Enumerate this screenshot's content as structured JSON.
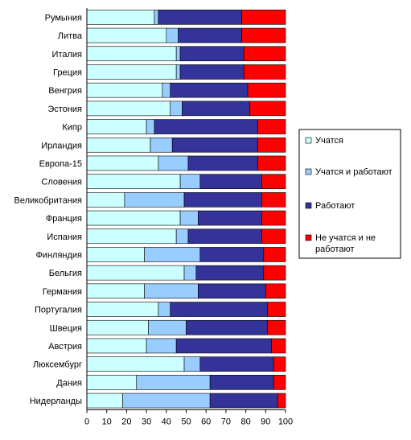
{
  "chart_data": {
    "type": "bar",
    "orientation": "horizontal",
    "stacked": true,
    "title": "",
    "xlabel": "",
    "ylabel": "",
    "xlim": [
      0,
      100
    ],
    "xticks": [
      0,
      10,
      20,
      30,
      40,
      50,
      60,
      70,
      80,
      90,
      100
    ],
    "grid": false,
    "legend_position": "right",
    "categories": [
      "Румыния",
      "Литва",
      "Италия",
      "Греция",
      "Венгрия",
      "Эстония",
      "Кипр",
      "Ирландия",
      "Европа-15",
      "Словения",
      "Великобритания",
      "Франция",
      "Испания",
      "Финляндия",
      "Бельгия",
      "Германия",
      "Португалия",
      "Швеция",
      "Австрия",
      "Люксембург",
      "Дания",
      "Нидерланды"
    ],
    "series": [
      {
        "name": "Учатся",
        "color": "#ccffff",
        "values": [
          34,
          40,
          45,
          45,
          38,
          42,
          30,
          32,
          36,
          47,
          19,
          47,
          45,
          29,
          49,
          29,
          36,
          31,
          30,
          49,
          25,
          18
        ]
      },
      {
        "name": "Учатся и работают",
        "color": "#99ccff",
        "values": [
          2,
          6,
          2,
          2,
          4,
          6,
          4,
          11,
          15,
          10,
          30,
          9,
          6,
          28,
          6,
          27,
          6,
          19,
          15,
          8,
          37,
          44
        ]
      },
      {
        "name": "Работают",
        "color": "#333399",
        "values": [
          42,
          32,
          32,
          32,
          39,
          34,
          52,
          43,
          35,
          31,
          39,
          32,
          37,
          32,
          34,
          34,
          49,
          41,
          48,
          37,
          32,
          34
        ]
      },
      {
        "name": "Не учатся и не работают",
        "color": "#ff0000",
        "values": [
          22,
          22,
          21,
          21,
          19,
          18,
          14,
          14,
          14,
          12,
          12,
          12,
          12,
          11,
          11,
          10,
          9,
          9,
          7,
          6,
          6,
          4
        ]
      }
    ]
  }
}
